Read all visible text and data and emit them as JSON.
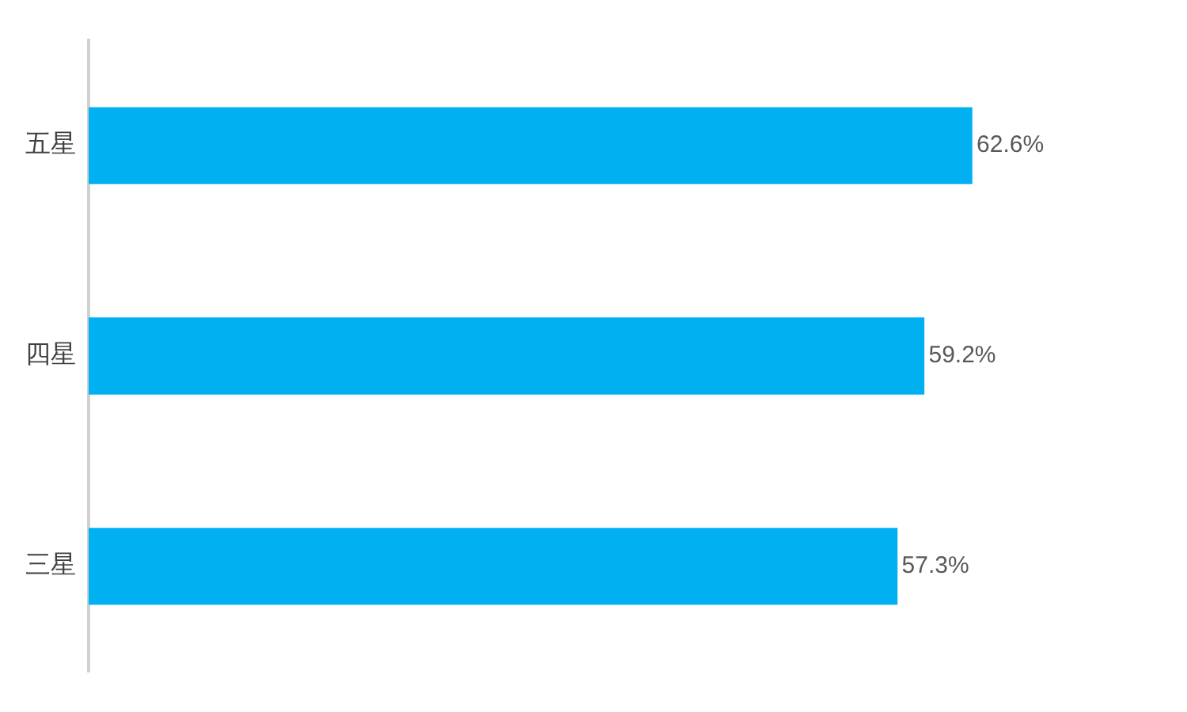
{
  "chart_data": {
    "type": "bar",
    "orientation": "horizontal",
    "categories": [
      "五星",
      "四星",
      "三星"
    ],
    "values": [
      62.6,
      59.2,
      57.3
    ],
    "color": "#00b0f0",
    "value_labels": [
      "62.6%",
      "59.2%",
      "57.3%"
    ],
    "tick_labels": "y",
    "grid": false,
    "legend": false
  }
}
